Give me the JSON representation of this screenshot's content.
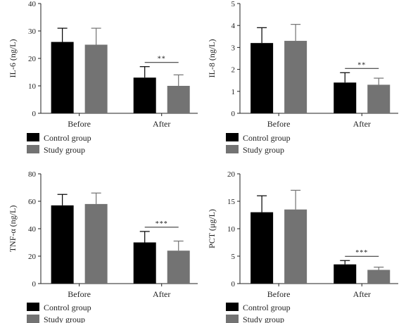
{
  "colors": {
    "control": "#000000",
    "study": "#737373",
    "axis": "#222222"
  },
  "chart_data": [
    {
      "type": "bar",
      "ylabel": "IL-6 (ng/L)",
      "ylim": [
        0,
        40
      ],
      "yticks": [
        0,
        10,
        20,
        30,
        40
      ],
      "categories": [
        "Before",
        "After"
      ],
      "series": [
        {
          "name": "Control group",
          "values": [
            26,
            13
          ],
          "errors": [
            5,
            4
          ]
        },
        {
          "name": "Study group",
          "values": [
            25,
            10
          ],
          "errors": [
            6,
            4
          ]
        }
      ],
      "annotations": [
        {
          "category": "After",
          "text": "**"
        }
      ],
      "legend_position": "bottom-left",
      "grid": false
    },
    {
      "type": "bar",
      "ylabel": "IL-8 (ng/L)",
      "ylim": [
        0,
        5
      ],
      "yticks": [
        0,
        1,
        2,
        3,
        4,
        5
      ],
      "categories": [
        "Before",
        "After"
      ],
      "series": [
        {
          "name": "Control group",
          "values": [
            3.2,
            1.4
          ],
          "errors": [
            0.7,
            0.45
          ]
        },
        {
          "name": "Study group",
          "values": [
            3.3,
            1.3
          ],
          "errors": [
            0.75,
            0.3
          ]
        }
      ],
      "annotations": [
        {
          "category": "After",
          "text": "**"
        }
      ],
      "legend_position": "bottom-left",
      "grid": false
    },
    {
      "type": "bar",
      "ylabel": "TNF-α (ng/L)",
      "ylim": [
        0,
        80
      ],
      "yticks": [
        0,
        20,
        40,
        60,
        80
      ],
      "categories": [
        "Before",
        "After"
      ],
      "series": [
        {
          "name": "Control group",
          "values": [
            57,
            30
          ],
          "errors": [
            8,
            8
          ]
        },
        {
          "name": "Study group",
          "values": [
            58,
            24
          ],
          "errors": [
            8,
            7
          ]
        }
      ],
      "annotations": [
        {
          "category": "After",
          "text": "***"
        }
      ],
      "legend_position": "bottom-left",
      "grid": false
    },
    {
      "type": "bar",
      "ylabel": "PCT (μg/L)",
      "ylim": [
        0,
        20
      ],
      "yticks": [
        0,
        5,
        10,
        15,
        20
      ],
      "categories": [
        "Before",
        "After"
      ],
      "series": [
        {
          "name": "Control group",
          "values": [
            13,
            3.5
          ],
          "errors": [
            3,
            0.7
          ]
        },
        {
          "name": "Study group",
          "values": [
            13.5,
            2.5
          ],
          "errors": [
            3.5,
            0.5
          ]
        }
      ],
      "annotations": [
        {
          "category": "After",
          "text": "***"
        }
      ],
      "legend_position": "bottom-left",
      "grid": false
    }
  ]
}
